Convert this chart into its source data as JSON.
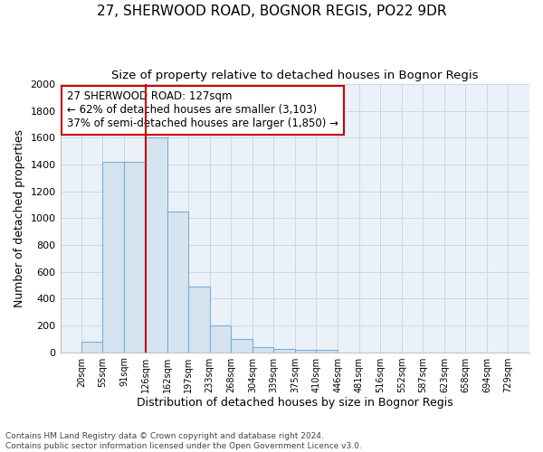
{
  "title": "27, SHERWOOD ROAD, BOGNOR REGIS, PO22 9DR",
  "subtitle": "Size of property relative to detached houses in Bognor Regis",
  "xlabel": "Distribution of detached houses by size in Bognor Regis",
  "ylabel": "Number of detached properties",
  "footnote1": "Contains HM Land Registry data © Crown copyright and database right 2024.",
  "footnote2": "Contains public sector information licensed under the Open Government Licence v3.0.",
  "annotation_line1": "27 SHERWOOD ROAD: 127sqm",
  "annotation_line2": "← 62% of detached houses are smaller (3,103)",
  "annotation_line3": "37% of semi-detached houses are larger (1,850) →",
  "bar_edges": [
    20,
    55,
    91,
    126,
    162,
    197,
    233,
    268,
    304,
    339,
    375,
    410,
    446,
    481,
    516,
    552,
    587,
    623,
    658,
    694,
    729
  ],
  "bar_heights": [
    80,
    1420,
    1420,
    1600,
    1050,
    490,
    200,
    100,
    35,
    25,
    20,
    15,
    0,
    0,
    0,
    0,
    0,
    0,
    0,
    0
  ],
  "bar_color": "#d6e4f0",
  "bar_edge_color": "#7aafd4",
  "red_line_x": 126,
  "ylim": [
    0,
    2000
  ],
  "yticks": [
    0,
    200,
    400,
    600,
    800,
    1000,
    1200,
    1400,
    1600,
    1800,
    2000
  ],
  "bg_color": "#ffffff",
  "plot_bg_color": "#eaf1f8",
  "grid_color": "#c8d8e8",
  "title_fontsize": 11,
  "subtitle_fontsize": 9.5,
  "annotation_fontsize": 8.5,
  "xlabel_fontsize": 9,
  "ylabel_fontsize": 9,
  "footnote_fontsize": 6.5
}
